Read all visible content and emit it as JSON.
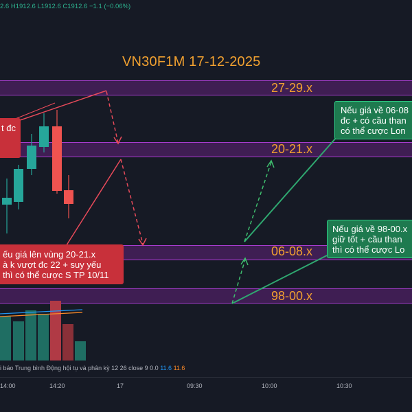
{
  "ohlc": {
    "open_tail": "2.6",
    "high": "H1912.6",
    "low": "L1912.6",
    "close": "C1912.6",
    "change": "−1.1 (−0.06%)"
  },
  "title": "VN30F1M 17-12-2025",
  "zones": [
    {
      "label": "27-29.x"
    },
    {
      "label": "20-21.x"
    },
    {
      "label": "06-08.x"
    },
    {
      "label": "98-00.x"
    }
  ],
  "notes": {
    "top_left": "t đc",
    "red_callout": [
      "ếu giá lên vùng 20-21.x",
      "à k vượt đc 22 + suy yếu",
      "thì có thể cược S TP 10/11"
    ],
    "green_callout_1": [
      "Nếu giá về 06-08",
      "đc + có cầu than",
      "có thể cược Lon"
    ],
    "green_callout_2": [
      "Nếu giá về 98-00.x",
      "giữ tốt + cầu than",
      "thì có thể cược Lo"
    ]
  },
  "indicator": {
    "label": "i báo Trung bình Động hội tụ và phân kỳ 12 26 close 9",
    "value_0": "0.0",
    "value_1": "11.6",
    "value_2": "11.6"
  },
  "time_axis": [
    "14:00",
    "14:20",
    "17",
    "09:30",
    "10:00",
    "10:30"
  ],
  "colors": {
    "up": "#26a69a",
    "down": "#ef5350",
    "zone": "#a83ccf",
    "label": "#f2a030",
    "green_line": "#2fa870",
    "red_dash": "#e84a5a"
  }
}
